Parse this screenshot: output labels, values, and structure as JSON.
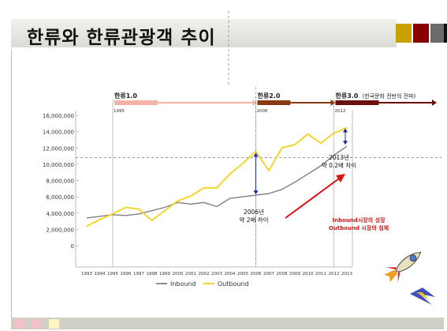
{
  "slide": {
    "title": "한류와  한류관광객 추이",
    "title_squares": [
      "#c8a000",
      "#8a0000",
      "#6b6b6b",
      "#111111"
    ],
    "bottom_squares": [
      "#f4c0c8",
      "#f4c0c8",
      "#fff6c4"
    ]
  },
  "chart_data": {
    "type": "line",
    "x": [
      "1993",
      "1994",
      "1995",
      "1996",
      "1997",
      "1998",
      "1999",
      "2000",
      "2001",
      "2002",
      "2003",
      "2004",
      "2005",
      "2006",
      "2007",
      "2008",
      "2009",
      "2010",
      "2011",
      "2012",
      "2013"
    ],
    "series": [
      {
        "name": "Inbound",
        "color": "#808080",
        "values": [
          3400000,
          3600000,
          3800000,
          3700000,
          3900000,
          4300000,
          4700000,
          5300000,
          5100000,
          5300000,
          4800000,
          5800000,
          6000000,
          6200000,
          6400000,
          6900000,
          7800000,
          8800000,
          9800000,
          11100000,
          12200000
        ]
      },
      {
        "name": "Outbound",
        "color": "#f2d21a",
        "values": [
          2400000,
          3200000,
          3900000,
          4700000,
          4500000,
          3100000,
          4300000,
          5500000,
          6100000,
          7100000,
          7100000,
          8800000,
          10100000,
          11600000,
          9200000,
          12000000,
          12400000,
          13700000,
          12600000,
          13800000,
          14500000
        ]
      }
    ],
    "yticks": [
      "16,000,000",
      "14,000,000",
      "12,000,000",
      "10,000,000",
      "8,000,000",
      "6,000,000",
      "4,000,000",
      "2,000,000",
      "0"
    ],
    "ylim": [
      0,
      16000000
    ],
    "legend_position": "bottom-center",
    "eras": [
      {
        "label": "한류1.0",
        "year": "1995",
        "from": "1995",
        "to": "2006",
        "color": "#f3b3a6"
      },
      {
        "label": "한류2.0",
        "year": "2006",
        "from": "2006",
        "to": "2012",
        "color": "#8a3a12"
      },
      {
        "label": "한류3.0",
        "note": "(한국문화 전반의 전파)",
        "year": "2012",
        "from": "2012",
        "to": "2013",
        "color": "#6a1010"
      }
    ],
    "annotations": [
      {
        "lines": [
          "2006년",
          "약 2배 차이"
        ],
        "x": "2006"
      },
      {
        "lines": [
          "2013년",
          "약 0.2배 차이"
        ],
        "x": "2013"
      }
    ],
    "callout": {
      "lines": [
        "Inbound시장의 성장",
        "Outbound 시장의 침체"
      ],
      "color": "#cc1a1a"
    },
    "reference_y": 10800000,
    "reference_x": "2006"
  }
}
